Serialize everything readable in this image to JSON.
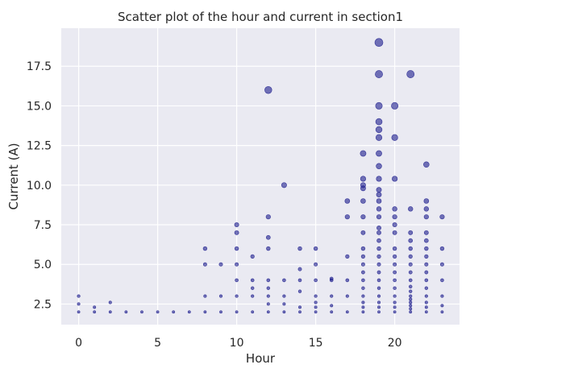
{
  "chart_data": {
    "type": "scatter",
    "title": "Scatter plot of the hour and current in section1",
    "xlabel": "Hour",
    "ylabel": "Current (A)",
    "xlim": [
      -1.1,
      24.1
    ],
    "ylim": [
      1.2,
      19.9
    ],
    "grid": true,
    "x_ticks": [
      0,
      5,
      10,
      15,
      20
    ],
    "x_tick_labels": [
      "0",
      "5",
      "10",
      "15",
      "20"
    ],
    "y_ticks": [
      2.5,
      5.0,
      7.5,
      10.0,
      12.5,
      15.0,
      17.5
    ],
    "y_tick_labels": [
      "2.5",
      "5.0",
      "7.5",
      "10.0",
      "12.5",
      "15.0",
      "17.5"
    ],
    "colors": {
      "background": "#eaeaf2",
      "grid": "#ffffff",
      "marker": "#1a1a8c"
    },
    "series": [
      {
        "points": [
          {
            "x": 0,
            "y": 2.0
          },
          {
            "x": 0,
            "y": 2.5
          },
          {
            "x": 0,
            "y": 3.0
          },
          {
            "x": 1,
            "y": 2.0
          },
          {
            "x": 1,
            "y": 2.3
          },
          {
            "x": 2,
            "y": 2.0
          },
          {
            "x": 2,
            "y": 2.6
          },
          {
            "x": 3,
            "y": 2.0
          },
          {
            "x": 4,
            "y": 2.0
          },
          {
            "x": 5,
            "y": 2.0
          },
          {
            "x": 6,
            "y": 2.0
          },
          {
            "x": 7,
            "y": 2.0
          },
          {
            "x": 8,
            "y": 2.0
          },
          {
            "x": 8,
            "y": 3.0
          },
          {
            "x": 8,
            "y": 5.0
          },
          {
            "x": 8,
            "y": 6.0
          },
          {
            "x": 9,
            "y": 2.0
          },
          {
            "x": 9,
            "y": 3.0
          },
          {
            "x": 9,
            "y": 5.0
          },
          {
            "x": 10,
            "y": 2.0
          },
          {
            "x": 10,
            "y": 3.0
          },
          {
            "x": 10,
            "y": 4.0
          },
          {
            "x": 10,
            "y": 5.0
          },
          {
            "x": 10,
            "y": 6.0
          },
          {
            "x": 10,
            "y": 7.0
          },
          {
            "x": 10,
            "y": 7.5
          },
          {
            "x": 11,
            "y": 2.0
          },
          {
            "x": 11,
            "y": 3.0
          },
          {
            "x": 11,
            "y": 3.5
          },
          {
            "x": 11,
            "y": 4.0
          },
          {
            "x": 11,
            "y": 5.5
          },
          {
            "x": 12,
            "y": 2.0
          },
          {
            "x": 12,
            "y": 2.5
          },
          {
            "x": 12,
            "y": 3.0
          },
          {
            "x": 12,
            "y": 3.5
          },
          {
            "x": 12,
            "y": 4.0
          },
          {
            "x": 12,
            "y": 6.0
          },
          {
            "x": 12,
            "y": 6.7
          },
          {
            "x": 12,
            "y": 8.0
          },
          {
            "x": 12,
            "y": 16.0
          },
          {
            "x": 13,
            "y": 2.0
          },
          {
            "x": 13,
            "y": 2.5
          },
          {
            "x": 13,
            "y": 3.0
          },
          {
            "x": 13,
            "y": 4.0
          },
          {
            "x": 13,
            "y": 10.0
          },
          {
            "x": 14,
            "y": 2.0
          },
          {
            "x": 14,
            "y": 2.3
          },
          {
            "x": 14,
            "y": 3.3
          },
          {
            "x": 14,
            "y": 4.0
          },
          {
            "x": 14,
            "y": 4.7
          },
          {
            "x": 14,
            "y": 6.0
          },
          {
            "x": 15,
            "y": 2.0
          },
          {
            "x": 15,
            "y": 2.3
          },
          {
            "x": 15,
            "y": 2.6
          },
          {
            "x": 15,
            "y": 3.0
          },
          {
            "x": 15,
            "y": 4.0
          },
          {
            "x": 15,
            "y": 5.0
          },
          {
            "x": 15,
            "y": 6.0
          },
          {
            "x": 16,
            "y": 2.0
          },
          {
            "x": 16,
            "y": 2.4
          },
          {
            "x": 16,
            "y": 3.0
          },
          {
            "x": 16,
            "y": 4.0
          },
          {
            "x": 16,
            "y": 4.1
          },
          {
            "x": 17,
            "y": 2.0
          },
          {
            "x": 17,
            "y": 3.0
          },
          {
            "x": 17,
            "y": 4.0
          },
          {
            "x": 17,
            "y": 5.5
          },
          {
            "x": 17,
            "y": 8.0
          },
          {
            "x": 17,
            "y": 9.0
          },
          {
            "x": 18,
            "y": 2.0
          },
          {
            "x": 18,
            "y": 2.3
          },
          {
            "x": 18,
            "y": 2.6
          },
          {
            "x": 18,
            "y": 3.0
          },
          {
            "x": 18,
            "y": 3.5
          },
          {
            "x": 18,
            "y": 4.0
          },
          {
            "x": 18,
            "y": 4.5
          },
          {
            "x": 18,
            "y": 5.0
          },
          {
            "x": 18,
            "y": 5.5
          },
          {
            "x": 18,
            "y": 6.0
          },
          {
            "x": 18,
            "y": 7.0
          },
          {
            "x": 18,
            "y": 8.0
          },
          {
            "x": 18,
            "y": 9.0
          },
          {
            "x": 18,
            "y": 9.8
          },
          {
            "x": 18,
            "y": 10.0
          },
          {
            "x": 18,
            "y": 10.4
          },
          {
            "x": 18,
            "y": 12.0
          },
          {
            "x": 19,
            "y": 2.0
          },
          {
            "x": 19,
            "y": 2.3
          },
          {
            "x": 19,
            "y": 2.6
          },
          {
            "x": 19,
            "y": 3.0
          },
          {
            "x": 19,
            "y": 3.5
          },
          {
            "x": 19,
            "y": 4.0
          },
          {
            "x": 19,
            "y": 4.5
          },
          {
            "x": 19,
            "y": 5.0
          },
          {
            "x": 19,
            "y": 5.5
          },
          {
            "x": 19,
            "y": 6.0
          },
          {
            "x": 19,
            "y": 6.5
          },
          {
            "x": 19,
            "y": 7.0
          },
          {
            "x": 19,
            "y": 7.3
          },
          {
            "x": 19,
            "y": 8.0
          },
          {
            "x": 19,
            "y": 8.5
          },
          {
            "x": 19,
            "y": 9.0
          },
          {
            "x": 19,
            "y": 9.4
          },
          {
            "x": 19,
            "y": 9.7
          },
          {
            "x": 19,
            "y": 10.4
          },
          {
            "x": 19,
            "y": 11.2
          },
          {
            "x": 19,
            "y": 12.0
          },
          {
            "x": 19,
            "y": 13.0
          },
          {
            "x": 19,
            "y": 13.5
          },
          {
            "x": 19,
            "y": 14.0
          },
          {
            "x": 19,
            "y": 15.0
          },
          {
            "x": 19,
            "y": 17.0
          },
          {
            "x": 19,
            "y": 19.0
          },
          {
            "x": 20,
            "y": 2.0
          },
          {
            "x": 20,
            "y": 2.3
          },
          {
            "x": 20,
            "y": 2.6
          },
          {
            "x": 20,
            "y": 3.0
          },
          {
            "x": 20,
            "y": 3.5
          },
          {
            "x": 20,
            "y": 4.0
          },
          {
            "x": 20,
            "y": 4.5
          },
          {
            "x": 20,
            "y": 5.0
          },
          {
            "x": 20,
            "y": 5.5
          },
          {
            "x": 20,
            "y": 6.0
          },
          {
            "x": 20,
            "y": 7.0
          },
          {
            "x": 20,
            "y": 7.5
          },
          {
            "x": 20,
            "y": 8.0
          },
          {
            "x": 20,
            "y": 8.5
          },
          {
            "x": 20,
            "y": 10.4
          },
          {
            "x": 20,
            "y": 13.0
          },
          {
            "x": 20,
            "y": 15.0
          },
          {
            "x": 21,
            "y": 2.0
          },
          {
            "x": 21,
            "y": 2.2
          },
          {
            "x": 21,
            "y": 2.4
          },
          {
            "x": 21,
            "y": 2.6
          },
          {
            "x": 21,
            "y": 2.8
          },
          {
            "x": 21,
            "y": 3.0
          },
          {
            "x": 21,
            "y": 3.3
          },
          {
            "x": 21,
            "y": 3.6
          },
          {
            "x": 21,
            "y": 4.0
          },
          {
            "x": 21,
            "y": 4.5
          },
          {
            "x": 21,
            "y": 5.0
          },
          {
            "x": 21,
            "y": 5.5
          },
          {
            "x": 21,
            "y": 6.0
          },
          {
            "x": 21,
            "y": 6.5
          },
          {
            "x": 21,
            "y": 7.0
          },
          {
            "x": 21,
            "y": 8.5
          },
          {
            "x": 21,
            "y": 17.0
          },
          {
            "x": 22,
            "y": 2.0
          },
          {
            "x": 22,
            "y": 2.3
          },
          {
            "x": 22,
            "y": 2.6
          },
          {
            "x": 22,
            "y": 3.0
          },
          {
            "x": 22,
            "y": 3.5
          },
          {
            "x": 22,
            "y": 4.0
          },
          {
            "x": 22,
            "y": 4.5
          },
          {
            "x": 22,
            "y": 5.0
          },
          {
            "x": 22,
            "y": 5.5
          },
          {
            "x": 22,
            "y": 6.0
          },
          {
            "x": 22,
            "y": 6.5
          },
          {
            "x": 22,
            "y": 7.0
          },
          {
            "x": 22,
            "y": 8.0
          },
          {
            "x": 22,
            "y": 8.5
          },
          {
            "x": 22,
            "y": 9.0
          },
          {
            "x": 22,
            "y": 11.3
          },
          {
            "x": 23,
            "y": 2.0
          },
          {
            "x": 23,
            "y": 2.4
          },
          {
            "x": 23,
            "y": 3.0
          },
          {
            "x": 23,
            "y": 4.0
          },
          {
            "x": 23,
            "y": 5.0
          },
          {
            "x": 23,
            "y": 6.0
          },
          {
            "x": 23,
            "y": 8.0
          }
        ]
      }
    ]
  }
}
